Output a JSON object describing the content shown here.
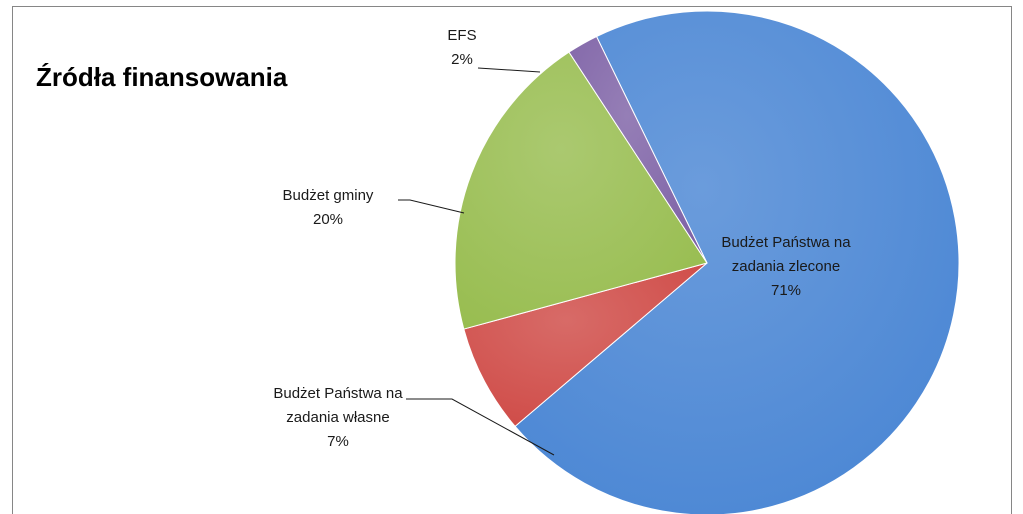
{
  "chart_data": {
    "type": "pie",
    "title": "Źródła finansowania",
    "slices": [
      {
        "label_lines": [
          "Budżet Państwa na",
          "zadania zlecone"
        ],
        "percent_label": "71%",
        "value": 71,
        "color": "#4a86d4",
        "label_inside": true
      },
      {
        "label_lines": [
          "Budżet Państwa na",
          "zadania własne"
        ],
        "percent_label": "7%",
        "value": 7,
        "color": "#cf4a46",
        "label_inside": false
      },
      {
        "label_lines": [
          "Budżet gminy"
        ],
        "percent_label": "20%",
        "value": 20,
        "color": "#98bd50",
        "label_inside": false
      },
      {
        "label_lines": [
          "EFS"
        ],
        "percent_label": "2%",
        "value": 2,
        "color": "#7e62a6",
        "label_inside": false
      }
    ],
    "legend": "none",
    "grid": false
  }
}
